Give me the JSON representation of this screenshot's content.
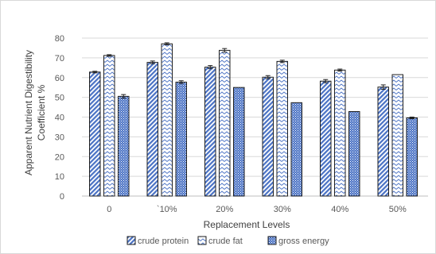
{
  "chart_data": {
    "type": "bar",
    "title": "",
    "xlabel": "Replacement Levels",
    "ylabel_lines": [
      "Apparent Nutrient Digestibility",
      "Coefficient %"
    ],
    "categories": [
      "0",
      "`10%",
      "20%",
      "30%",
      "40%",
      "50%"
    ],
    "ylim": [
      0,
      80
    ],
    "yticks": [
      0,
      10,
      20,
      30,
      40,
      50,
      60,
      70,
      80
    ],
    "grid": "horizontal",
    "legend_position": "bottom",
    "error_bars": true,
    "series": [
      {
        "name": "crude protein",
        "values": [
          62.8,
          67.7,
          65.3,
          60.2,
          58.2,
          55.2
        ],
        "errors": [
          0.4,
          0.7,
          0.8,
          0.8,
          0.8,
          1.1
        ],
        "pattern": "diagonal-stripes"
      },
      {
        "name": "crude fat",
        "values": [
          71.2,
          77.1,
          73.8,
          68.2,
          63.8,
          61.5
        ],
        "errors": [
          0.4,
          0.5,
          0.9,
          0.6,
          0.5,
          0.0
        ],
        "pattern": "zigzag"
      },
      {
        "name": "gross energy",
        "values": [
          50.5,
          57.7,
          55.0,
          47.3,
          42.8,
          39.6
        ],
        "errors": [
          0.9,
          0.7,
          0.0,
          0.0,
          0.0,
          0.4
        ],
        "pattern": "diamond-dots"
      }
    ],
    "colors": {
      "bar_fill": "#4a72c4",
      "bar_light": "#ffffff",
      "gridline": "#d9d9d9",
      "text": "#595959"
    }
  }
}
